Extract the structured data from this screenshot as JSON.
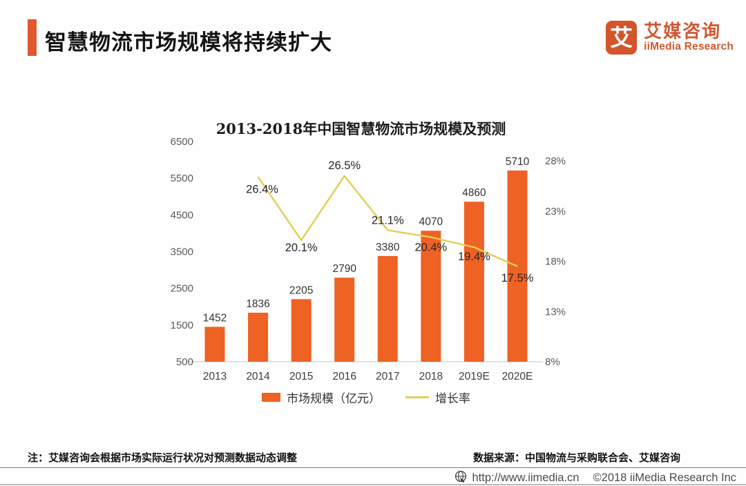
{
  "header": {
    "title": "智慧物流市场规模将持续扩大",
    "logo": {
      "icon_char": "艾",
      "name_cn": "艾媒咨询",
      "name_en": "iiMedia Research"
    }
  },
  "chart_data": {
    "type": "bar",
    "title": "2013-2018年中国智慧物流市场规模及预测",
    "categories": [
      "2013",
      "2014",
      "2015",
      "2016",
      "2017",
      "2018",
      "2019E",
      "2020E"
    ],
    "series": [
      {
        "name": "市场规模（亿元）",
        "type": "bar",
        "axis": "left",
        "color": "#ee6224",
        "values": [
          1452,
          1836,
          2205,
          2790,
          3380,
          4070,
          4860,
          5710
        ]
      },
      {
        "name": "增长率",
        "type": "line",
        "axis": "right",
        "color": "#e2ce55",
        "label_suffix": "%",
        "values": [
          null,
          26.4,
          20.1,
          26.5,
          21.1,
          20.4,
          19.4,
          17.5
        ]
      }
    ],
    "left_axis": {
      "ticks": [
        500,
        1500,
        2500,
        3500,
        4500,
        5500,
        6500
      ],
      "min": 500,
      "max": 6500
    },
    "right_axis": {
      "ticks": [
        8,
        13,
        18,
        23,
        28
      ],
      "suffix": "%",
      "min": 8,
      "max": 28
    },
    "legend": [
      "市场规模（亿元）",
      "增长率"
    ],
    "legend_position": "bottom",
    "grid": false,
    "xlabel": "",
    "ylabel": ""
  },
  "footer": {
    "note": "注：艾媒咨询会根据市场实际运行状况对预测数据动态调整",
    "source": "数据来源：中国物流与采购联合会、艾媒咨询",
    "url": "http://www.iimedia.cn",
    "copyright": "©2018  iiMedia Research Inc"
  },
  "colors": {
    "accent": "#e0582e",
    "bar": "#ee6224",
    "line": "#e2ce55"
  }
}
